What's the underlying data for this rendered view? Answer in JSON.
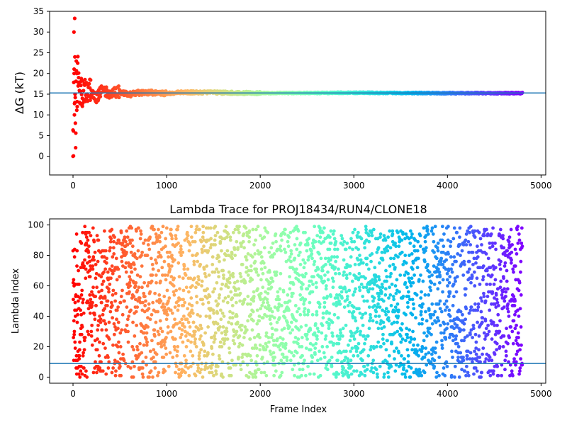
{
  "chart_data": [
    {
      "type": "scatter",
      "title": "",
      "xlabel": "",
      "ylabel": "ΔG (kT)",
      "xlim": [
        -250,
        5050
      ],
      "ylim": [
        -4.5,
        35
      ],
      "xticks": [
        0,
        1000,
        2000,
        3000,
        4000,
        5000
      ],
      "yticks": [
        0,
        5,
        10,
        15,
        20,
        25,
        30,
        35
      ],
      "colormap": "rainbow",
      "color_by": "frame index",
      "frame_count": 4800,
      "hline": {
        "y": 15.3,
        "color": "#1f77b4"
      },
      "series": [
        {
          "description_points": [
            [
              0,
              0.0
            ],
            [
              5,
              0.1
            ],
            [
              10,
              30.0
            ],
            [
              12,
              20.0
            ],
            [
              15,
              10.0
            ],
            [
              18,
              33.3
            ],
            [
              20,
              24.0
            ],
            [
              22,
              15.0
            ],
            [
              25,
              8.0
            ],
            [
              30,
              5.6
            ],
            [
              35,
              23.0
            ],
            [
              40,
              20.0
            ],
            [
              45,
              12.0
            ],
            [
              50,
              22.5
            ],
            [
              55,
              17.0
            ],
            [
              60,
              19.0
            ],
            [
              70,
              13.0
            ],
            [
              80,
              18.0
            ],
            [
              100,
              14.0
            ],
            [
              120,
              17.5
            ],
            [
              150,
              13.5
            ],
            [
              180,
              16.5
            ],
            [
              200,
              15.0
            ],
            [
              250,
              13.0
            ],
            [
              300,
              16.8
            ],
            [
              400,
              15.0
            ],
            [
              500,
              16.0
            ],
            [
              600,
              14.5
            ],
            [
              700,
              15.4
            ],
            [
              800,
              15.6
            ],
            [
              1000,
              15.2
            ],
            [
              1200,
              15.6
            ],
            [
              1500,
              15.5
            ],
            [
              2000,
              15.2
            ],
            [
              2500,
              15.3
            ],
            [
              3000,
              15.4
            ],
            [
              3500,
              15.3
            ],
            [
              4000,
              15.2
            ],
            [
              4500,
              15.2
            ],
            [
              4800,
              15.2
            ]
          ]
        }
      ]
    },
    {
      "type": "scatter",
      "title": "Lambda Trace for PROJ18434/RUN4/CLONE18",
      "xlabel": "Frame Index",
      "ylabel": "Lambda Index",
      "xlim": [
        -250,
        5050
      ],
      "ylim": [
        -4,
        104
      ],
      "xticks": [
        0,
        1000,
        2000,
        3000,
        4000,
        5000
      ],
      "yticks": [
        0,
        20,
        40,
        60,
        80,
        100
      ],
      "colormap": "rainbow",
      "color_by": "frame index",
      "frame_count": 4800,
      "lambda_range": [
        0,
        99
      ],
      "hline": {
        "y": 9,
        "color": "#1f77b4"
      },
      "note_points": "approximately uniformly scattered lambda indices 0-99 across frames 0-4800"
    }
  ]
}
